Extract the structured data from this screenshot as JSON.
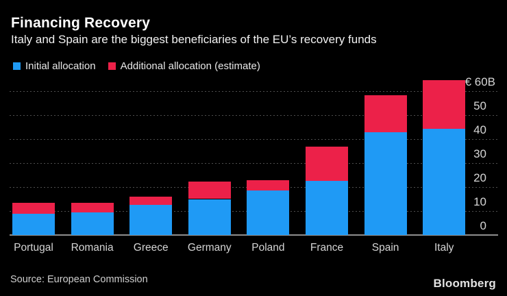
{
  "header": {
    "title": "Financing Recovery",
    "subtitle": "Italy and Spain are the biggest beneficiaries of the EU’s recovery funds"
  },
  "legend": {
    "initial": {
      "label": "Initial allocation",
      "color": "#1f9af5"
    },
    "additional": {
      "label": "Additional allocation (estimate)",
      "color": "#ec2149"
    }
  },
  "chart_data": {
    "type": "bar",
    "stacked": true,
    "title": "Financing Recovery",
    "subtitle": "Italy and Spain are the biggest beneficiaries of the EU’s recovery funds",
    "unit": "€ billions",
    "categories": [
      "Portugal",
      "Romania",
      "Greece",
      "Germany",
      "Poland",
      "France",
      "Spain",
      "Italy"
    ],
    "series": [
      {
        "name": "Initial allocation",
        "color": "#1f9af5",
        "values": [
          8.9,
          9.3,
          12.6,
          15.0,
          18.6,
          22.5,
          42.8,
          44.2
        ]
      },
      {
        "name": "Additional allocation (estimate)",
        "color": "#ec2149",
        "values": [
          4.4,
          4.1,
          3.4,
          7.4,
          4.3,
          14.3,
          15.5,
          20.4
        ]
      }
    ],
    "totals": [
      13.3,
      13.4,
      16.0,
      22.4,
      22.9,
      36.8,
      58.3,
      64.6
    ],
    "yticks": [
      {
        "value": 0,
        "label": "0"
      },
      {
        "value": 10,
        "label": "10"
      },
      {
        "value": 20,
        "label": "20"
      },
      {
        "value": 30,
        "label": "30"
      },
      {
        "value": 40,
        "label": "40"
      },
      {
        "value": 50,
        "label": "50"
      },
      {
        "value": 60,
        "label": "€ 60B"
      }
    ],
    "ylim": [
      0,
      65
    ],
    "grid": "horizontal-dotted",
    "legend_position": "top-left",
    "axis_side": "right",
    "colors": {
      "background": "#000000",
      "gridline": "#4f4f4f",
      "baseline": "#8f8f8f"
    }
  },
  "footer": {
    "source": "Source: European Commission",
    "brand": "Bloomberg"
  }
}
